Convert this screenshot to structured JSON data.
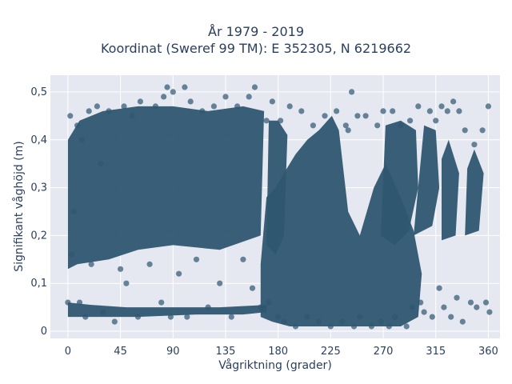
{
  "chart_data": {
    "type": "scatter",
    "title": "År 1979 - 2019",
    "subtitle": "Koordinat (Sweref 99 TM): E 352305, N 6219662",
    "xlabel": "Vågriktning (grader)",
    "ylabel": "Signifikant våghöjd (m)",
    "xlim": [
      -15,
      370
    ],
    "ylim": [
      -0.015,
      0.535
    ],
    "x_ticks": [
      0,
      45,
      90,
      135,
      180,
      225,
      270,
      315,
      360
    ],
    "x_tick_labels": [
      "0",
      "45",
      "90",
      "135",
      "180",
      "225",
      "270",
      "315",
      "360"
    ],
    "y_ticks": [
      0,
      0.1,
      0.2,
      0.3,
      0.4,
      0.5
    ],
    "y_tick_labels": [
      "0",
      "0,1",
      "0,2",
      "0,3",
      "0,4",
      "0,5"
    ],
    "grid": true,
    "marker_color": "#2f5670",
    "background_color": "#e5e8f0",
    "series": [
      {
        "points": [
          [
            0,
            0.06
          ],
          [
            2,
            0.45
          ],
          [
            3,
            0.16
          ],
          [
            5,
            0.25
          ],
          [
            8,
            0.43
          ],
          [
            10,
            0.06
          ],
          [
            12,
            0.4
          ],
          [
            15,
            0.03
          ],
          [
            18,
            0.46
          ],
          [
            20,
            0.14
          ],
          [
            25,
            0.47
          ],
          [
            28,
            0.35
          ],
          [
            30,
            0.04
          ],
          [
            35,
            0.46
          ],
          [
            40,
            0.02
          ],
          [
            45,
            0.13
          ],
          [
            48,
            0.47
          ],
          [
            50,
            0.1
          ],
          [
            55,
            0.45
          ],
          [
            60,
            0.03
          ],
          [
            62,
            0.48
          ],
          [
            70,
            0.14
          ],
          [
            75,
            0.47
          ],
          [
            80,
            0.06
          ],
          [
            82,
            0.49
          ],
          [
            85,
            0.51
          ],
          [
            88,
            0.03
          ],
          [
            90,
            0.5
          ],
          [
            95,
            0.12
          ],
          [
            100,
            0.51
          ],
          [
            102,
            0.03
          ],
          [
            105,
            0.48
          ],
          [
            110,
            0.15
          ],
          [
            115,
            0.46
          ],
          [
            120,
            0.05
          ],
          [
            125,
            0.47
          ],
          [
            130,
            0.1
          ],
          [
            135,
            0.49
          ],
          [
            140,
            0.03
          ],
          [
            145,
            0.47
          ],
          [
            150,
            0.15
          ],
          [
            155,
            0.49
          ],
          [
            158,
            0.09
          ],
          [
            160,
            0.51
          ],
          [
            165,
            0.05
          ],
          [
            170,
            0.44
          ],
          [
            172,
            0.06
          ],
          [
            175,
            0.48
          ],
          [
            180,
            0.03
          ],
          [
            182,
            0.44
          ],
          [
            185,
            0.02
          ],
          [
            190,
            0.47
          ],
          [
            195,
            0.01
          ],
          [
            200,
            0.46
          ],
          [
            205,
            0.03
          ],
          [
            210,
            0.43
          ],
          [
            215,
            0.02
          ],
          [
            220,
            0.45
          ],
          [
            225,
            0.01
          ],
          [
            230,
            0.46
          ],
          [
            235,
            0.02
          ],
          [
            238,
            0.43
          ],
          [
            240,
            0.42
          ],
          [
            243,
            0.5
          ],
          [
            245,
            0.01
          ],
          [
            248,
            0.45
          ],
          [
            250,
            0.03
          ],
          [
            255,
            0.45
          ],
          [
            260,
            0.01
          ],
          [
            265,
            0.43
          ],
          [
            268,
            0.02
          ],
          [
            270,
            0.46
          ],
          [
            275,
            0.01
          ],
          [
            278,
            0.46
          ],
          [
            280,
            0.03
          ],
          [
            285,
            0.43
          ],
          [
            290,
            0.01
          ],
          [
            293,
            0.44
          ],
          [
            295,
            0.05
          ],
          [
            300,
            0.47
          ],
          [
            302,
            0.06
          ],
          [
            305,
            0.04
          ],
          [
            310,
            0.46
          ],
          [
            312,
            0.03
          ],
          [
            315,
            0.44
          ],
          [
            318,
            0.09
          ],
          [
            320,
            0.47
          ],
          [
            322,
            0.05
          ],
          [
            325,
            0.46
          ],
          [
            328,
            0.03
          ],
          [
            330,
            0.48
          ],
          [
            333,
            0.07
          ],
          [
            335,
            0.46
          ],
          [
            338,
            0.02
          ],
          [
            340,
            0.42
          ],
          [
            345,
            0.06
          ],
          [
            348,
            0.39
          ],
          [
            350,
            0.05
          ],
          [
            355,
            0.42
          ],
          [
            358,
            0.06
          ],
          [
            360,
            0.47
          ],
          [
            361,
            0.04
          ]
        ]
      }
    ]
  }
}
